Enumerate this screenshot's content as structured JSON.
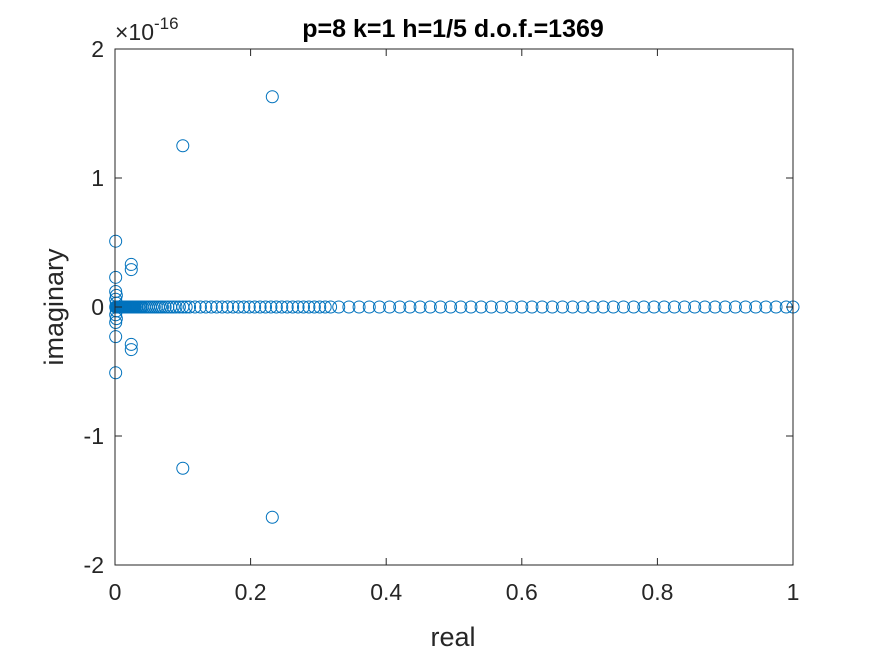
{
  "chart_data": {
    "type": "scatter",
    "title": "p=8 k=1 h=1/5 d.o.f.=1369",
    "xlabel": "real",
    "ylabel": "imaginary",
    "xlim": [
      0,
      1
    ],
    "ylim": [
      -2,
      2
    ],
    "y_exponent_prefix": "×10",
    "y_exponent": "-16",
    "x_ticks": [
      0,
      0.2,
      0.4,
      0.6,
      0.8,
      1
    ],
    "x_tick_labels": [
      "0",
      "0.2",
      "0.4",
      "0.6",
      "0.8",
      "1"
    ],
    "y_ticks": [
      -2,
      -1,
      0,
      1,
      2
    ],
    "y_tick_labels": [
      "-2",
      "-1",
      "0",
      "1",
      "2"
    ],
    "grid": false,
    "legend": false,
    "marker": "open-circle",
    "marker_color": "#0072BD",
    "series": [
      {
        "x": [
          0.232,
          0.232,
          0.1,
          0.1,
          0.024,
          0.024,
          0.024,
          0.024,
          0.001,
          0.001,
          0.001,
          0.001,
          0.001,
          0.001,
          0.001,
          0.001,
          0.002,
          0.002,
          0.002,
          0.002,
          0.001,
          0.002,
          0.003,
          0.004,
          0.005,
          0.006,
          0.007,
          0.008,
          0.009,
          0.01,
          0.011,
          0.012,
          0.013,
          0.014,
          0.015,
          0.016,
          0.017,
          0.018,
          0.019,
          0.02,
          0.021,
          0.022,
          0.023,
          0.024,
          0.025,
          0.026,
          0.027,
          0.028,
          0.029,
          0.03,
          0.032,
          0.034,
          0.036,
          0.038,
          0.04,
          0.043,
          0.046,
          0.049,
          0.052,
          0.055,
          0.058,
          0.061,
          0.064,
          0.067,
          0.07,
          0.074,
          0.078,
          0.082,
          0.086,
          0.09,
          0.095,
          0.1,
          0.105,
          0.11,
          0.118,
          0.126,
          0.134,
          0.142,
          0.15,
          0.158,
          0.166,
          0.174,
          0.182,
          0.19,
          0.198,
          0.206,
          0.214,
          0.222,
          0.23,
          0.238,
          0.246,
          0.254,
          0.262,
          0.27,
          0.278,
          0.286,
          0.294,
          0.302,
          0.31,
          0.318,
          0.33,
          0.345,
          0.36,
          0.375,
          0.39,
          0.405,
          0.42,
          0.435,
          0.45,
          0.465,
          0.48,
          0.495,
          0.51,
          0.525,
          0.54,
          0.555,
          0.57,
          0.585,
          0.6,
          0.615,
          0.63,
          0.645,
          0.66,
          0.675,
          0.69,
          0.705,
          0.72,
          0.735,
          0.75,
          0.765,
          0.78,
          0.795,
          0.81,
          0.825,
          0.84,
          0.855,
          0.87,
          0.885,
          0.9,
          0.915,
          0.93,
          0.945,
          0.96,
          0.975,
          0.99,
          1.0
        ],
        "y": [
          1.63,
          -1.63,
          1.25,
          -1.25,
          0.33,
          0.29,
          -0.29,
          -0.33,
          0.51,
          -0.51,
          0.23,
          -0.23,
          0.12,
          -0.12,
          0.06,
          -0.06,
          0.03,
          -0.03,
          0.09,
          -0.09,
          0,
          0,
          0,
          0,
          0,
          0,
          0,
          0,
          0,
          0,
          0,
          0,
          0,
          0,
          0,
          0,
          0,
          0,
          0,
          0,
          0,
          0,
          0,
          0,
          0,
          0,
          0,
          0,
          0,
          0,
          0,
          0,
          0,
          0,
          0,
          0,
          0,
          0,
          0,
          0,
          0,
          0,
          0,
          0,
          0,
          0,
          0,
          0,
          0,
          0,
          0,
          0,
          0,
          0,
          0,
          0,
          0,
          0,
          0,
          0,
          0,
          0,
          0,
          0,
          0,
          0,
          0,
          0,
          0,
          0,
          0,
          0,
          0,
          0,
          0,
          0,
          0,
          0,
          0,
          0,
          0,
          0,
          0,
          0,
          0,
          0,
          0,
          0,
          0,
          0,
          0,
          0,
          0,
          0,
          0,
          0,
          0,
          0,
          0,
          0,
          0,
          0,
          0,
          0,
          0,
          0,
          0,
          0,
          0,
          0,
          0,
          0,
          0,
          0,
          0,
          0,
          0,
          0,
          0,
          0,
          0,
          0,
          0,
          0,
          0,
          0
        ]
      }
    ]
  }
}
